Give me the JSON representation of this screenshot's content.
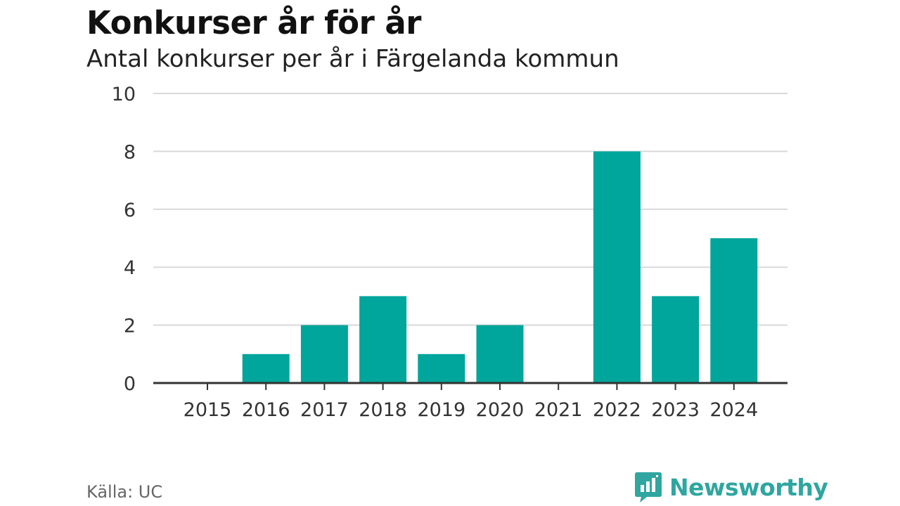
{
  "header": {
    "title": "Konkurser år för år",
    "subtitle": "Antal konkurser per år i Färgelanda kommun"
  },
  "footer": {
    "source": "Källa: UC",
    "brand": "Newsworthy",
    "brand_icon": "newsworthy-logo-icon",
    "brand_color": "#2fa6a0"
  },
  "chart_data": {
    "type": "bar",
    "title": "Konkurser år för år",
    "subtitle": "Antal konkurser per år i Färgelanda kommun",
    "categories": [
      "2015",
      "2016",
      "2017",
      "2018",
      "2019",
      "2020",
      "2021",
      "2022",
      "2023",
      "2024"
    ],
    "values": [
      0,
      1,
      2,
      3,
      1,
      2,
      0,
      8,
      3,
      5
    ],
    "ylim": [
      0,
      10
    ],
    "yticks": [
      "0",
      "2",
      "4",
      "6",
      "8",
      "10"
    ],
    "grid": true,
    "bar_color": "#00a59b",
    "grid_color": "#d9d9d9",
    "axis_color": "#333333"
  }
}
